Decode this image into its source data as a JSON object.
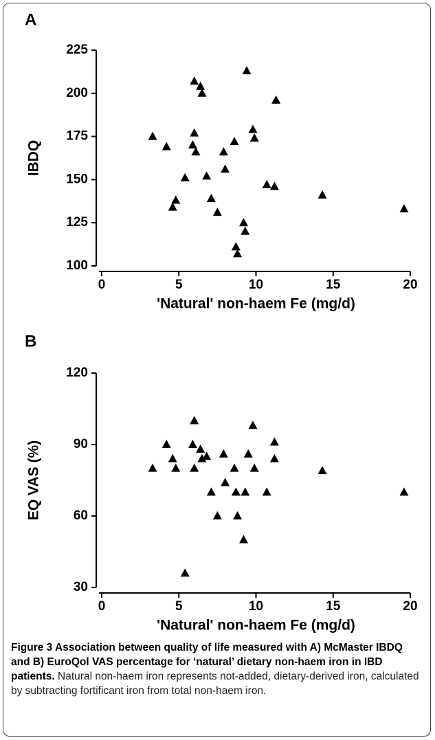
{
  "chart_data": [
    {
      "type": "scatter",
      "panel": "A",
      "xlabel": "'Natural' non-haem Fe (mg/d)",
      "ylabel": "IBDQ",
      "color": "#000000",
      "xlim": [
        0,
        20
      ],
      "xticks": [
        0,
        5,
        10,
        15,
        20
      ],
      "ylim": [
        100,
        225
      ],
      "yticks": [
        100,
        125,
        150,
        175,
        200,
        225
      ],
      "x": [
        3.3,
        4.2,
        4.6,
        4.8,
        5.4,
        5.9,
        6.0,
        6.0,
        6.1,
        6.4,
        6.5,
        6.8,
        7.1,
        7.5,
        7.9,
        8.0,
        8.6,
        8.7,
        8.8,
        9.2,
        9.3,
        9.4,
        9.8,
        9.9,
        10.7,
        11.2,
        11.3,
        14.3,
        19.6
      ],
      "values": [
        175,
        169,
        134,
        138,
        151,
        170,
        177,
        207,
        166,
        204,
        200,
        152,
        139,
        131,
        166,
        156,
        172,
        111,
        107,
        125,
        120,
        213,
        179,
        174,
        147,
        146,
        196,
        141,
        133
      ]
    },
    {
      "type": "scatter",
      "panel": "B",
      "xlabel": "'Natural' non-haem Fe (mg/d)",
      "ylabel": "EQ VAS (%)",
      "color": "#000000",
      "xlim": [
        0,
        20
      ],
      "xticks": [
        0,
        5,
        10,
        15,
        20
      ],
      "ylim": [
        30,
        120
      ],
      "yticks": [
        30,
        60,
        90,
        120
      ],
      "x": [
        3.3,
        4.2,
        4.6,
        4.8,
        5.4,
        5.9,
        6.0,
        6.0,
        6.4,
        6.5,
        6.8,
        7.1,
        7.5,
        7.9,
        8.0,
        8.6,
        8.7,
        8.8,
        9.2,
        9.3,
        9.5,
        9.8,
        9.9,
        10.7,
        11.2,
        11.2,
        14.3,
        19.6
      ],
      "values": [
        80,
        90,
        84,
        80,
        36,
        90,
        80,
        100,
        88,
        84,
        85,
        70,
        60,
        86,
        74,
        80,
        70,
        60,
        50,
        70,
        86,
        98,
        80,
        70,
        91,
        84,
        79,
        70
      ]
    }
  ],
  "caption": {
    "title": "Figure 3 Association between quality of life measured with A) McMaster IBDQ and B) EuroQol VAS percentage for ‘natural’ dietary non-haem iron in IBD patients.",
    "text": "Natural non-haem iron represents not-added, dietary-derived iron, calculated by subtracting fortificant iron from total non-haem iron."
  }
}
